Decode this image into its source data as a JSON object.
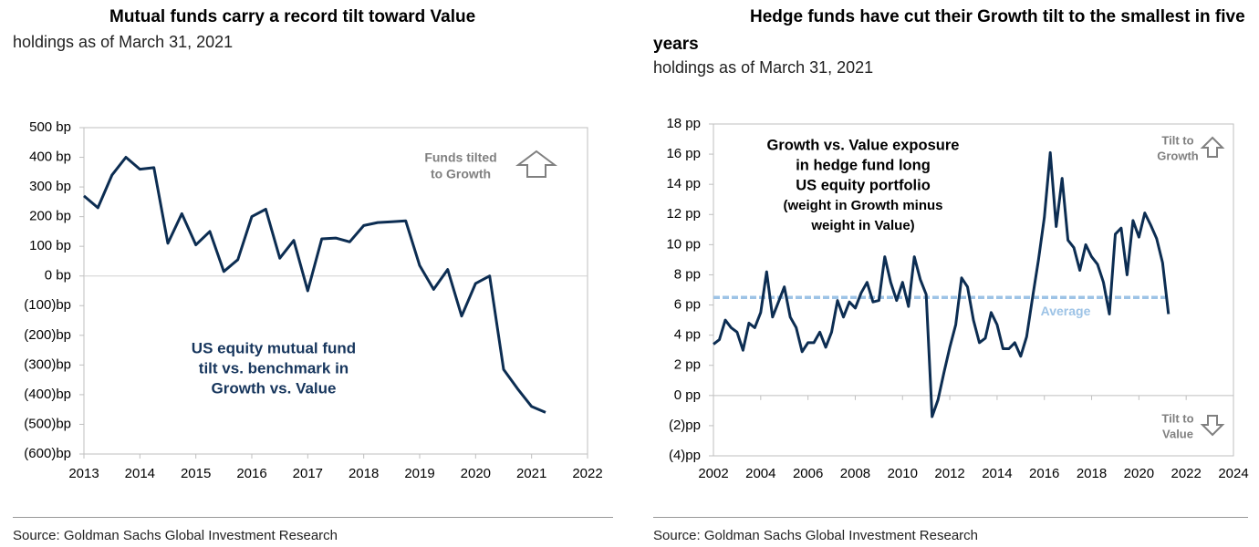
{
  "chart_data": [
    {
      "type": "line",
      "title": "Mutual funds carry a record tilt toward Value",
      "subtitle": "holdings as of March 31, 2021",
      "source": "Source: Goldman Sachs Global Investment Research",
      "x": [
        2013,
        2013.25,
        2013.5,
        2013.75,
        2014,
        2014.25,
        2014.5,
        2014.75,
        2015,
        2015.25,
        2015.5,
        2015.75,
        2016,
        2016.25,
        2016.5,
        2016.75,
        2017,
        2017.25,
        2017.5,
        2017.75,
        2018,
        2018.25,
        2018.5,
        2018.75,
        2019,
        2019.25,
        2019.5,
        2019.75,
        2020,
        2020.25,
        2020.5,
        2020.75,
        2021,
        2021.25
      ],
      "series": [
        {
          "color": "#0c2d52",
          "values": [
            270,
            230,
            340,
            400,
            360,
            365,
            110,
            210,
            105,
            150,
            15,
            55,
            200,
            225,
            60,
            120,
            -50,
            125,
            128,
            115,
            170,
            180,
            183,
            186,
            35,
            -45,
            22,
            -135,
            -25,
            0,
            -315,
            -380,
            -440,
            -460
          ]
        }
      ],
      "xlim": [
        2013,
        2022
      ],
      "xticks": [
        2013,
        2014,
        2015,
        2016,
        2017,
        2018,
        2019,
        2020,
        2021,
        2022
      ],
      "ylim": [
        -600,
        500
      ],
      "yticks": [
        {
          "value": 500,
          "label": "500 bp"
        },
        {
          "value": 400,
          "label": "400 bp"
        },
        {
          "value": 300,
          "label": "300 bp"
        },
        {
          "value": 200,
          "label": "200 bp"
        },
        {
          "value": 100,
          "label": "100 bp"
        },
        {
          "value": 0,
          "label": "0 bp"
        },
        {
          "value": -100,
          "label": "(100)bp"
        },
        {
          "value": -200,
          "label": "(200)bp"
        },
        {
          "value": -300,
          "label": "(300)bp"
        },
        {
          "value": -400,
          "label": "(400)bp"
        },
        {
          "value": -500,
          "label": "(500)bp"
        },
        {
          "value": -600,
          "label": "(600)bp"
        }
      ],
      "zero_line": true,
      "annotations": [
        [
          "Funds tilted",
          "to Growth"
        ],
        [
          "US equity mutual fund",
          "tilt vs. benchmark in",
          "Growth vs. Value"
        ]
      ]
    },
    {
      "type": "line",
      "title": "Hedge funds have cut their Growth tilt to the smallest in five years",
      "subtitle": "holdings as of March 31, 2021",
      "source": "Source: Goldman Sachs Global Investment Research",
      "x": [
        2002,
        2002.25,
        2002.5,
        2002.75,
        2003,
        2003.25,
        2003.5,
        2003.75,
        2004,
        2004.25,
        2004.5,
        2004.75,
        2005,
        2005.25,
        2005.5,
        2005.75,
        2006,
        2006.25,
        2006.5,
        2006.75,
        2007,
        2007.25,
        2007.5,
        2007.75,
        2008,
        2008.25,
        2008.5,
        2008.75,
        2009,
        2009.25,
        2009.5,
        2009.75,
        2010,
        2010.25,
        2010.5,
        2010.75,
        2011,
        2011.25,
        2011.5,
        2011.75,
        2012,
        2012.25,
        2012.5,
        2012.75,
        2013,
        2013.25,
        2013.5,
        2013.75,
        2014,
        2014.25,
        2014.5,
        2014.75,
        2015,
        2015.25,
        2015.5,
        2015.75,
        2016,
        2016.25,
        2016.5,
        2016.75,
        2017,
        2017.25,
        2017.5,
        2017.75,
        2018,
        2018.25,
        2018.5,
        2018.75,
        2019,
        2019.25,
        2019.5,
        2019.75,
        2020,
        2020.25,
        2020.5,
        2020.75,
        2021,
        2021.25
      ],
      "series": [
        {
          "color": "#0c2d52",
          "values": [
            3.4,
            3.7,
            5.0,
            4.5,
            4.2,
            3.0,
            4.8,
            4.5,
            5.5,
            8.2,
            5.2,
            6.2,
            7.2,
            5.2,
            4.5,
            2.9,
            3.5,
            3.5,
            4.2,
            3.2,
            4.2,
            6.3,
            5.2,
            6.2,
            5.8,
            6.8,
            7.5,
            6.2,
            6.3,
            9.2,
            7.5,
            6.3,
            7.5,
            5.9,
            9.2,
            7.7,
            6.7,
            -1.4,
            -0.3,
            1.5,
            3.2,
            4.7,
            7.8,
            7.2,
            5.0,
            3.5,
            3.8,
            5.5,
            4.7,
            3.1,
            3.1,
            3.5,
            2.6,
            3.9,
            6.5,
            9.0,
            11.8,
            16.1,
            11.2,
            14.4,
            10.3,
            9.8,
            8.3,
            10.0,
            9.2,
            8.7,
            7.5,
            5.4,
            10.7,
            11.1,
            8.0,
            11.6,
            10.5,
            12.1,
            11.3,
            10.4,
            8.8,
            5.4
          ]
        }
      ],
      "reference_line": {
        "label": "Average",
        "value": 6.5,
        "color": "#9dc3e6"
      },
      "xlim": [
        2002,
        2024
      ],
      "xticks": [
        2002,
        2004,
        2006,
        2008,
        2010,
        2012,
        2014,
        2016,
        2018,
        2020,
        2022,
        2024
      ],
      "ylim": [
        -4,
        18
      ],
      "yticks": [
        {
          "value": 18,
          "label": "18 pp"
        },
        {
          "value": 16,
          "label": "16 pp"
        },
        {
          "value": 14,
          "label": "14 pp"
        },
        {
          "value": 12,
          "label": "12 pp"
        },
        {
          "value": 10,
          "label": "10 pp"
        },
        {
          "value": 8,
          "label": "8 pp"
        },
        {
          "value": 6,
          "label": "6 pp"
        },
        {
          "value": 4,
          "label": "4 pp"
        },
        {
          "value": 2,
          "label": "2 pp"
        },
        {
          "value": 0,
          "label": "0 pp"
        },
        {
          "value": -2,
          "label": "(2)pp"
        },
        {
          "value": -4,
          "label": "(4)pp"
        }
      ],
      "zero_line": false,
      "annotations": [
        [
          "Tilt to",
          "Growth"
        ],
        [
          "Tilt to",
          "Value"
        ],
        [
          "Growth vs. Value exposure",
          "in hedge fund long",
          "US equity portfolio",
          "(weight in Growth minus",
          "weight in Value)"
        ]
      ]
    }
  ]
}
